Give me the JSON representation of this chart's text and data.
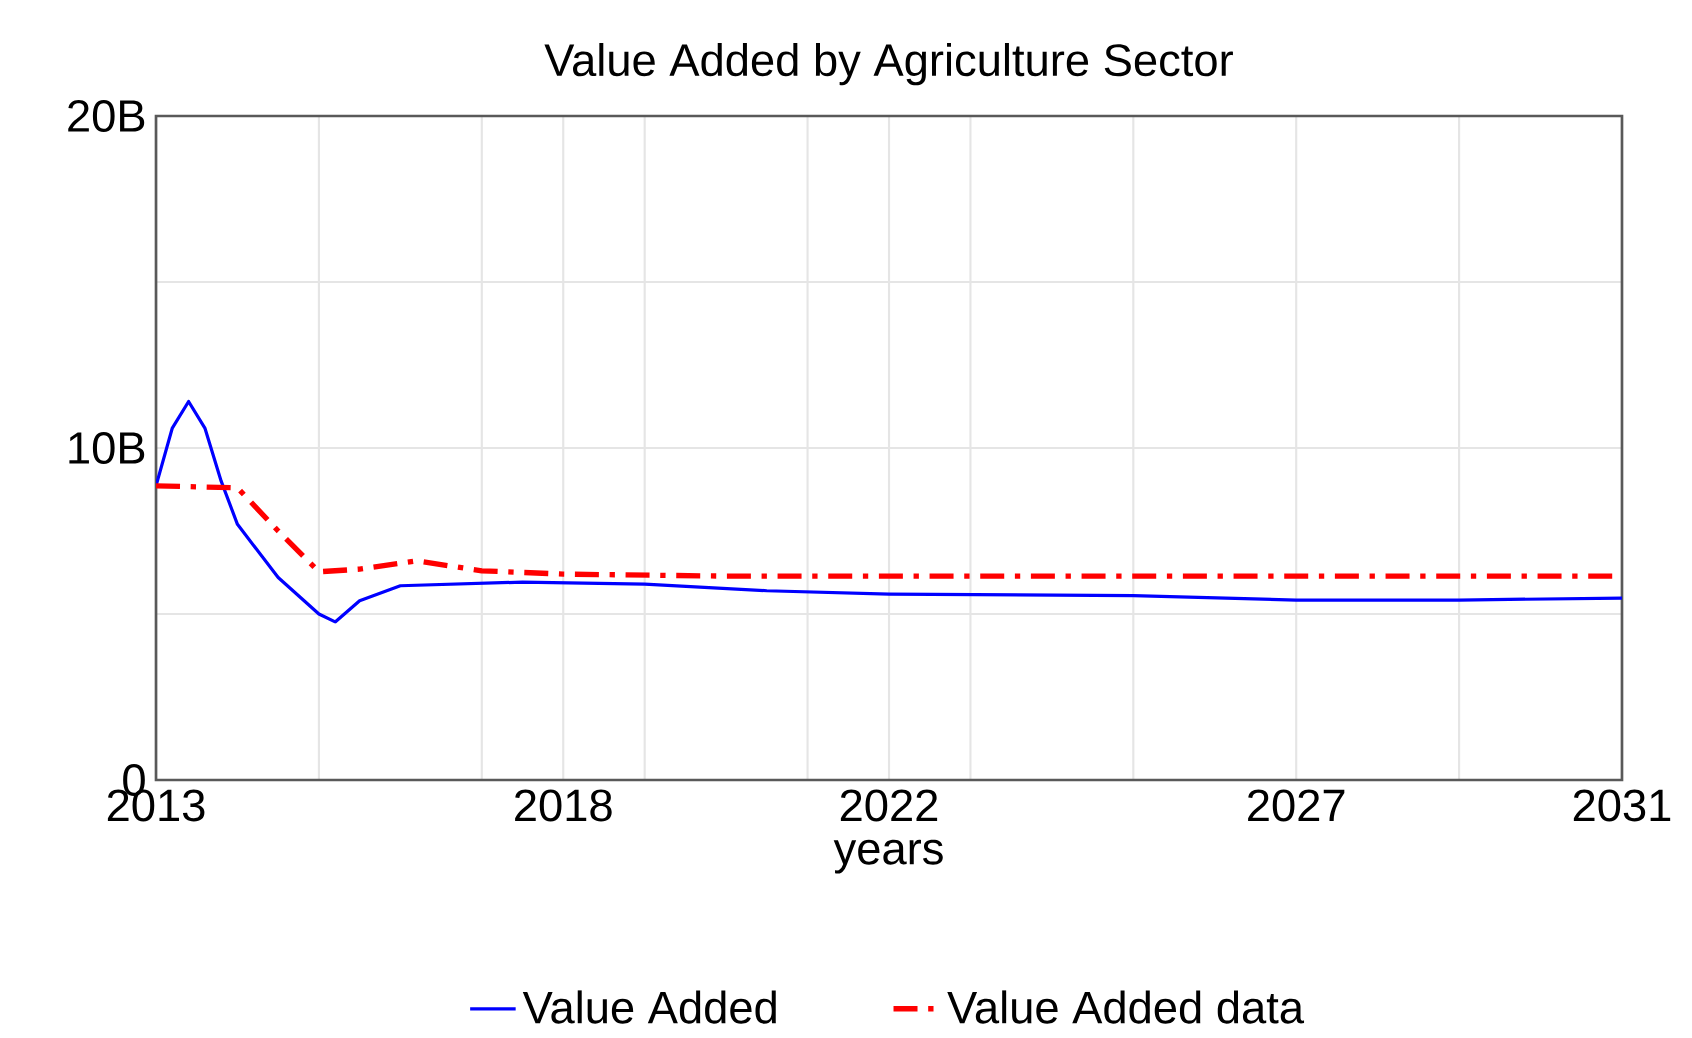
{
  "chart_data": {
    "type": "line",
    "title": "Value Added by Agriculture Sector",
    "xlabel": "years",
    "xlim": [
      2013,
      2031
    ],
    "ylim": [
      0,
      20000000000
    ],
    "xticks": [
      {
        "value": 2013,
        "label": "2013"
      },
      {
        "value": 2015,
        "label": null
      },
      {
        "value": 2017,
        "label": null
      },
      {
        "value": 2018,
        "label": "2018"
      },
      {
        "value": 2019,
        "label": null
      },
      {
        "value": 2021,
        "label": null
      },
      {
        "value": 2022,
        "label": "2022"
      },
      {
        "value": 2023,
        "label": null
      },
      {
        "value": 2025,
        "label": null
      },
      {
        "value": 2027,
        "label": "2027"
      },
      {
        "value": 2029,
        "label": null
      },
      {
        "value": 2031,
        "label": "2031"
      }
    ],
    "yticks": [
      {
        "value": 0,
        "label": "0"
      },
      {
        "value": 5000000000,
        "label": null
      },
      {
        "value": 10000000000,
        "label": "10B"
      },
      {
        "value": 15000000000,
        "label": null
      },
      {
        "value": 20000000000,
        "label": "20B"
      }
    ],
    "grid": true,
    "legend": "bottom",
    "marker": "none",
    "series": [
      {
        "name": "Value Added",
        "color": "#0000ff",
        "line_style": "solid",
        "x": [
          2013,
          2013.2,
          2013.4,
          2013.6,
          2013.8,
          2014,
          2014.5,
          2015,
          2015.2,
          2015.5,
          2016,
          2017.5,
          2019,
          2020.5,
          2022,
          2025,
          2027,
          2029,
          2031
        ],
        "values": [
          8860000000,
          10600000000,
          11400000000,
          10600000000,
          9000000000,
          7700000000,
          6100000000,
          5000000000,
          4760000000,
          5400000000,
          5850000000,
          5960000000,
          5900000000,
          5700000000,
          5600000000,
          5550000000,
          5420000000,
          5420000000,
          5480000000
        ]
      },
      {
        "name": "Value Added data",
        "color": "#ff0000",
        "line_style": "dashdot",
        "x": [
          2013,
          2014,
          2014.5,
          2015,
          2015.5,
          2016.2,
          2017,
          2018,
          2020,
          2031
        ],
        "values": [
          8860000000,
          8800000000,
          7500000000,
          6270000000,
          6350000000,
          6600000000,
          6300000000,
          6200000000,
          6140000000,
          6140000000
        ]
      }
    ]
  }
}
